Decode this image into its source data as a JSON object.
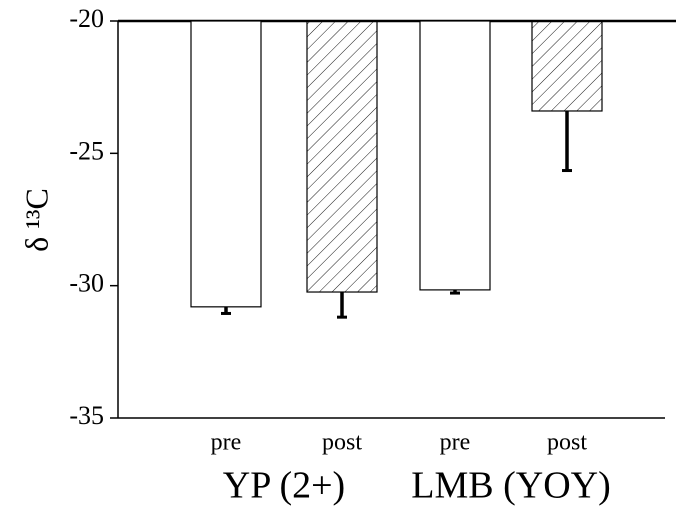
{
  "chart_data": {
    "type": "bar",
    "y_label": "δ ¹³C",
    "categories": [
      "pre",
      "post",
      "pre",
      "post"
    ],
    "groups": [
      "YP (2+)",
      "LMB (YOY)"
    ],
    "values": [
      -30.8,
      -30.24,
      -30.16,
      -23.4
    ],
    "errors": [
      0.25,
      0.95,
      0.12,
      2.25
    ],
    "patterns": [
      "solid",
      "hatch",
      "solid",
      "hatch"
    ],
    "color": "#000000",
    "ylim": [
      -35,
      -20
    ],
    "yticks": [
      -20,
      -25,
      -30,
      -35
    ]
  }
}
